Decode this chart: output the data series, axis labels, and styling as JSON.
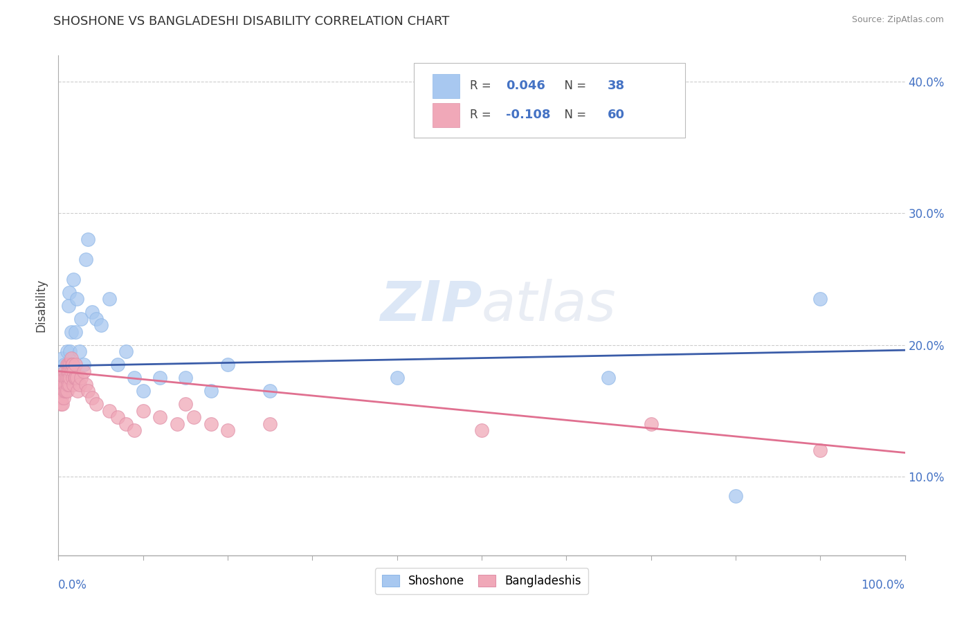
{
  "title": "SHOSHONE VS BANGLADESHI DISABILITY CORRELATION CHART",
  "source": "Source: ZipAtlas.com",
  "ylabel": "Disability",
  "legend_shoshone": "Shoshone",
  "legend_bangladeshi": "Bangladeshis",
  "r_shoshone": 0.046,
  "n_shoshone": 38,
  "r_bangladeshi": -0.108,
  "n_bangladeshi": 60,
  "shoshone_color": "#a8c8f0",
  "bangladeshi_color": "#f0a8b8",
  "shoshone_line_color": "#3a5ca8",
  "bangladeshi_line_color": "#e07090",
  "xlim": [
    0.0,
    1.0
  ],
  "ylim": [
    0.04,
    0.42
  ],
  "yticks": [
    0.1,
    0.2,
    0.3,
    0.4
  ],
  "ytick_labels": [
    "10.0%",
    "20.0%",
    "30.0%",
    "40.0%"
  ],
  "shoshone_x": [
    0.005,
    0.007,
    0.008,
    0.009,
    0.01,
    0.01,
    0.011,
    0.012,
    0.013,
    0.014,
    0.015,
    0.016,
    0.017,
    0.018,
    0.02,
    0.022,
    0.025,
    0.027,
    0.03,
    0.032,
    0.035,
    0.04,
    0.045,
    0.05,
    0.06,
    0.07,
    0.08,
    0.09,
    0.1,
    0.12,
    0.15,
    0.18,
    0.2,
    0.25,
    0.4,
    0.65,
    0.8,
    0.9
  ],
  "shoshone_y": [
    0.19,
    0.185,
    0.175,
    0.165,
    0.195,
    0.18,
    0.175,
    0.23,
    0.24,
    0.195,
    0.21,
    0.185,
    0.175,
    0.25,
    0.21,
    0.235,
    0.195,
    0.22,
    0.185,
    0.265,
    0.28,
    0.225,
    0.22,
    0.215,
    0.235,
    0.185,
    0.195,
    0.175,
    0.165,
    0.175,
    0.175,
    0.165,
    0.185,
    0.165,
    0.175,
    0.175,
    0.085,
    0.235
  ],
  "bangladeshi_x": [
    0.003,
    0.003,
    0.004,
    0.004,
    0.005,
    0.005,
    0.005,
    0.006,
    0.006,
    0.007,
    0.007,
    0.008,
    0.008,
    0.009,
    0.009,
    0.01,
    0.01,
    0.01,
    0.011,
    0.011,
    0.012,
    0.012,
    0.013,
    0.013,
    0.014,
    0.014,
    0.015,
    0.015,
    0.016,
    0.017,
    0.017,
    0.018,
    0.018,
    0.019,
    0.02,
    0.02,
    0.022,
    0.023,
    0.025,
    0.027,
    0.03,
    0.032,
    0.035,
    0.04,
    0.045,
    0.06,
    0.07,
    0.08,
    0.09,
    0.1,
    0.12,
    0.14,
    0.15,
    0.16,
    0.18,
    0.2,
    0.25,
    0.5,
    0.7,
    0.9
  ],
  "bangladeshi_y": [
    0.165,
    0.155,
    0.17,
    0.16,
    0.175,
    0.165,
    0.155,
    0.17,
    0.16,
    0.175,
    0.165,
    0.18,
    0.17,
    0.175,
    0.165,
    0.185,
    0.175,
    0.165,
    0.18,
    0.17,
    0.185,
    0.175,
    0.18,
    0.17,
    0.185,
    0.175,
    0.19,
    0.18,
    0.185,
    0.175,
    0.185,
    0.18,
    0.17,
    0.175,
    0.185,
    0.175,
    0.175,
    0.165,
    0.17,
    0.175,
    0.18,
    0.17,
    0.165,
    0.16,
    0.155,
    0.15,
    0.145,
    0.14,
    0.135,
    0.15,
    0.145,
    0.14,
    0.155,
    0.145,
    0.14,
    0.135,
    0.14,
    0.135,
    0.14,
    0.12
  ]
}
